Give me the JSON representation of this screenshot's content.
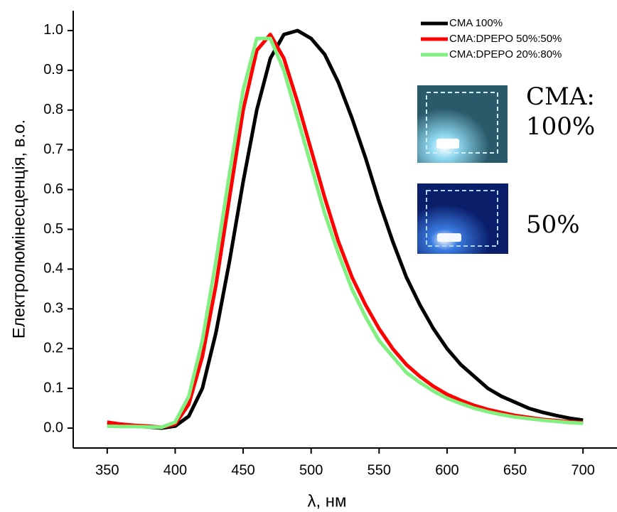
{
  "chart_data": {
    "type": "line",
    "xlabel": "λ, нм",
    "ylabel": "Електролюмінесценція, в.о.",
    "x": [
      350,
      360,
      370,
      380,
      390,
      400,
      410,
      420,
      430,
      440,
      450,
      460,
      470,
      480,
      490,
      500,
      510,
      520,
      530,
      540,
      550,
      560,
      570,
      580,
      590,
      600,
      610,
      620,
      630,
      640,
      650,
      660,
      670,
      680,
      690,
      700
    ],
    "series": [
      {
        "name": "CMA 100%",
        "color": "#000000",
        "values": [
          0.01,
          0.01,
          0.005,
          0.003,
          0.0,
          0.005,
          0.03,
          0.1,
          0.24,
          0.42,
          0.62,
          0.8,
          0.93,
          0.99,
          1.0,
          0.98,
          0.94,
          0.87,
          0.78,
          0.68,
          0.57,
          0.47,
          0.38,
          0.31,
          0.25,
          0.2,
          0.16,
          0.13,
          0.1,
          0.08,
          0.065,
          0.05,
          0.04,
          0.032,
          0.025,
          0.02
        ]
      },
      {
        "name": "CMA:DPEPO 50%:50%",
        "color": "#ff0000",
        "values": [
          0.015,
          0.01,
          0.007,
          0.005,
          0.002,
          0.01,
          0.06,
          0.18,
          0.36,
          0.58,
          0.8,
          0.95,
          0.99,
          0.93,
          0.82,
          0.7,
          0.58,
          0.47,
          0.38,
          0.31,
          0.25,
          0.2,
          0.16,
          0.13,
          0.105,
          0.085,
          0.07,
          0.057,
          0.047,
          0.039,
          0.032,
          0.027,
          0.022,
          0.019,
          0.016,
          0.014
        ]
      },
      {
        "name": "CMA:DPEPO 20%:80%",
        "color": "#80f080",
        "values": [
          0.005,
          0.004,
          0.004,
          0.003,
          0.002,
          0.015,
          0.08,
          0.22,
          0.42,
          0.64,
          0.85,
          0.98,
          0.98,
          0.9,
          0.78,
          0.66,
          0.54,
          0.44,
          0.35,
          0.28,
          0.22,
          0.18,
          0.14,
          0.115,
          0.093,
          0.075,
          0.062,
          0.05,
          0.041,
          0.034,
          0.028,
          0.024,
          0.02,
          0.017,
          0.014,
          0.012
        ]
      }
    ],
    "xlim": [
      325,
      725
    ],
    "ylim": [
      -0.05,
      1.05
    ],
    "xticks": [
      350,
      400,
      450,
      500,
      550,
      600,
      650,
      700
    ],
    "yticks": [
      {
        "value": 0,
        "label": "0.0"
      },
      0.1,
      0.2,
      0.3,
      0.4,
      0.5,
      0.6,
      0.7,
      0.8,
      0.9,
      {
        "value": 1,
        "label": "1.0"
      }
    ],
    "legend": "upper right",
    "annotations": [
      "CMA:",
      "100%",
      "50%"
    ]
  }
}
